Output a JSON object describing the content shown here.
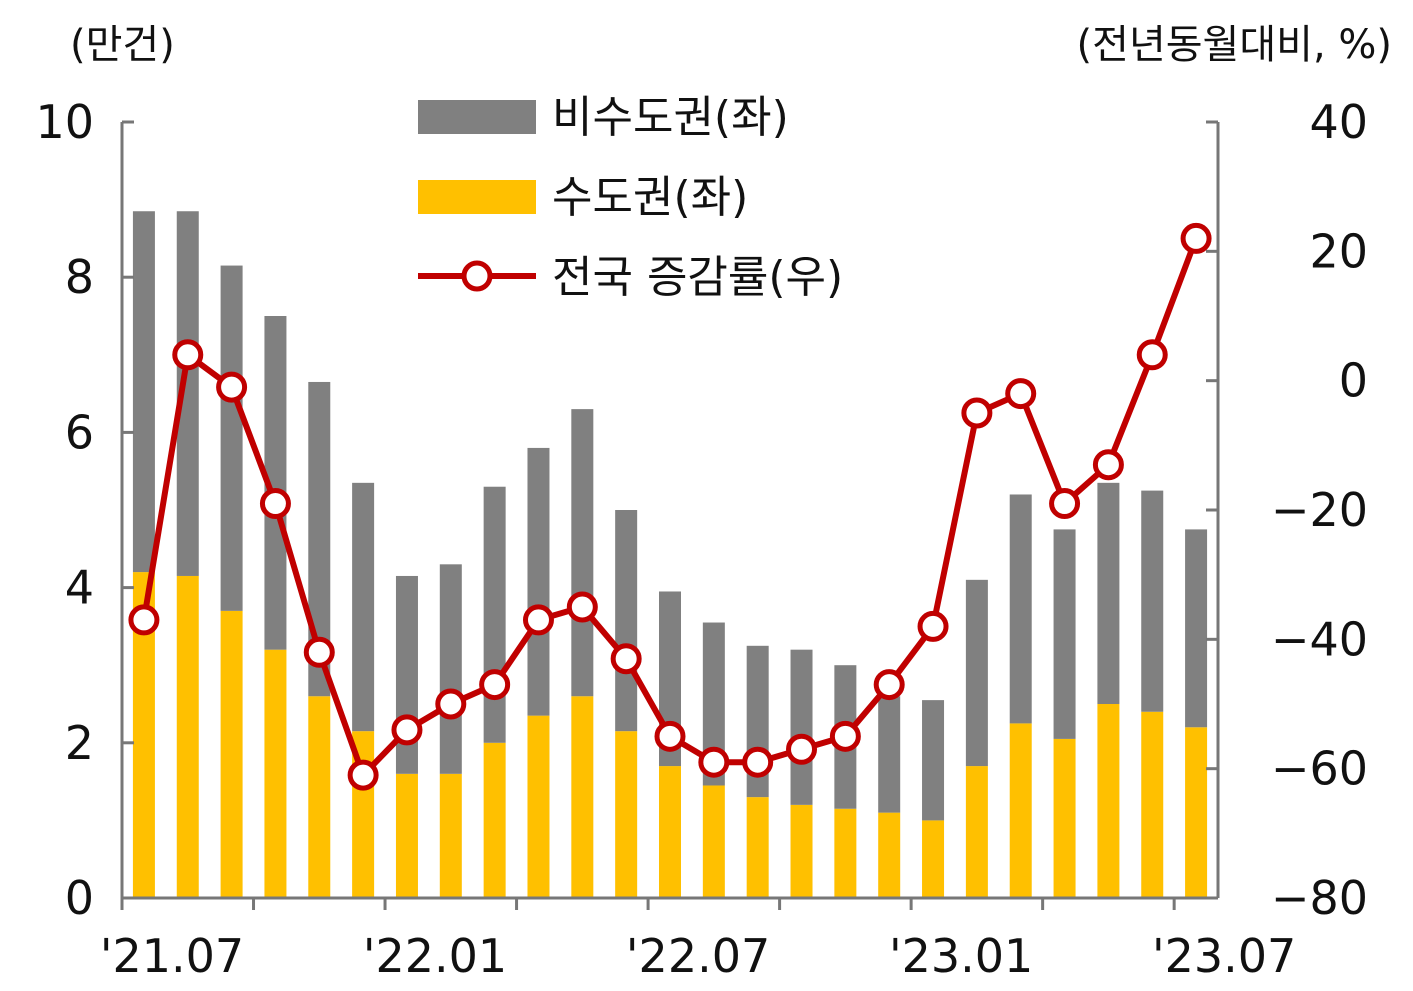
{
  "chart_data": {
    "type": "bar",
    "stacked": true,
    "categories": [
      "'21.07",
      "'21.08",
      "'21.09",
      "'21.10",
      "'21.11",
      "'21.12",
      "'22.01",
      "'22.02",
      "'22.03",
      "'22.04",
      "'22.05",
      "'22.06",
      "'22.07",
      "'22.08",
      "'22.09",
      "'22.10",
      "'22.11",
      "'22.12",
      "'23.01",
      "'23.02",
      "'23.03",
      "'23.04",
      "'23.05",
      "'23.06",
      "'23.07"
    ],
    "x_tick_labels": [
      "'21.07",
      "'22.01",
      "'22.07",
      "'23.01",
      "'23.07"
    ],
    "left_axis": {
      "unit_label": "(만건)",
      "ylim": [
        0,
        10
      ],
      "ticks": [
        "0",
        "2",
        "4",
        "6",
        "8",
        "10"
      ]
    },
    "right_axis": {
      "unit_label": "(전년동월대비, %)",
      "ylim": [
        -80,
        40
      ],
      "ticks": [
        "-80",
        "-60",
        "-40",
        "-20",
        "0",
        "20",
        "40"
      ]
    },
    "series": [
      {
        "name": "수도권(좌)",
        "type": "bar",
        "axis": "left",
        "color": "#FFC000",
        "values": [
          4.2,
          4.15,
          3.7,
          3.2,
          2.6,
          2.15,
          1.6,
          1.6,
          2.0,
          2.35,
          2.6,
          2.15,
          1.7,
          1.45,
          1.3,
          1.2,
          1.15,
          1.1,
          1.0,
          1.7,
          2.25,
          2.05,
          2.5,
          2.4,
          2.2
        ]
      },
      {
        "name": "비수도권(좌)",
        "type": "bar",
        "axis": "left",
        "color": "#808080",
        "values": [
          4.65,
          4.7,
          4.45,
          4.3,
          4.05,
          3.2,
          2.55,
          2.7,
          3.3,
          3.45,
          3.7,
          2.85,
          2.25,
          2.1,
          1.95,
          2.0,
          1.85,
          1.5,
          1.55,
          2.4,
          2.95,
          2.7,
          2.85,
          2.85,
          2.55
        ]
      },
      {
        "name": "전국 증감률(우)",
        "type": "line",
        "axis": "right",
        "color": "#C00000",
        "values": [
          -37,
          4,
          -1,
          -19,
          -42,
          -61,
          -54,
          -50,
          -47,
          -37,
          -35,
          -43,
          -55,
          -59,
          -59,
          -57,
          -55,
          -47,
          -38,
          -5,
          -2,
          -19,
          -13,
          4,
          22
        ]
      }
    ],
    "legend_position": "top-center",
    "grid": false
  }
}
